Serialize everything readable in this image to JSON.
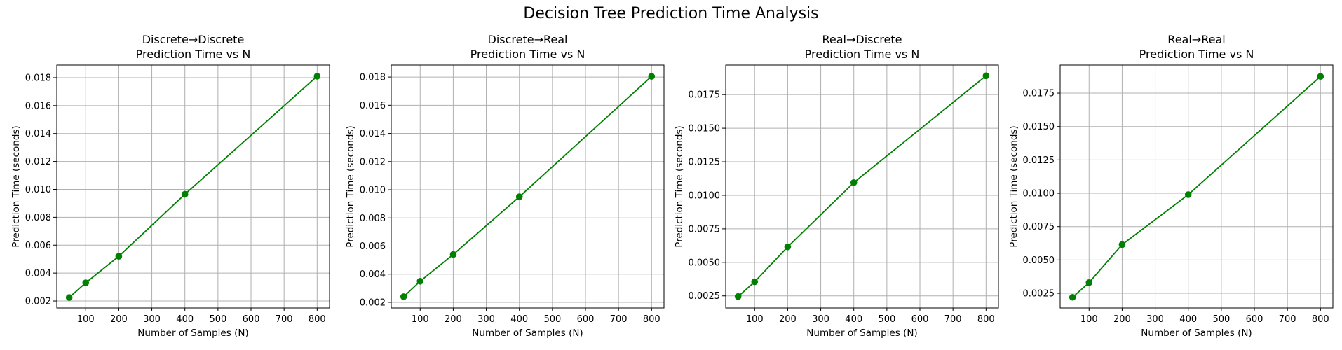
{
  "figure": {
    "title": "Decision Tree Prediction Time Analysis"
  },
  "style": {
    "series_color": "#008000",
    "grid_color": "#b0b0b0"
  },
  "chart_data": [
    {
      "type": "line",
      "title_line1": "Discrete→Discrete",
      "title_line2": "Prediction Time vs N",
      "xlabel": "Number of Samples (N)",
      "ylabel": "Prediction Time (seconds)",
      "x": [
        50,
        100,
        200,
        400,
        800
      ],
      "y": [
        0.00225,
        0.0033,
        0.0052,
        0.00965,
        0.0181
      ],
      "xlim": [
        12.5,
        837.5
      ],
      "ylim": [
        0.0015,
        0.0189
      ],
      "xticks": [
        100,
        200,
        300,
        400,
        500,
        600,
        700,
        800
      ],
      "yticks": [
        0.002,
        0.004,
        0.006,
        0.008,
        0.01,
        0.012,
        0.014,
        0.016,
        0.018
      ],
      "ytick_labels": [
        "0.002",
        "0.004",
        "0.006",
        "0.008",
        "0.010",
        "0.012",
        "0.014",
        "0.016",
        "0.018"
      ],
      "grid": true
    },
    {
      "type": "line",
      "title_line1": "Discrete→Real",
      "title_line2": "Prediction Time vs N",
      "xlabel": "Number of Samples (N)",
      "ylabel": "Prediction Time (seconds)",
      "x": [
        50,
        100,
        200,
        400,
        800
      ],
      "y": [
        0.0024,
        0.0035,
        0.0054,
        0.0095,
        0.01805
      ],
      "xlim": [
        12.5,
        837.5
      ],
      "ylim": [
        0.0016,
        0.01885
      ],
      "xticks": [
        100,
        200,
        300,
        400,
        500,
        600,
        700,
        800
      ],
      "yticks": [
        0.002,
        0.004,
        0.006,
        0.008,
        0.01,
        0.012,
        0.014,
        0.016,
        0.018
      ],
      "ytick_labels": [
        "0.002",
        "0.004",
        "0.006",
        "0.008",
        "0.010",
        "0.012",
        "0.014",
        "0.016",
        "0.018"
      ],
      "grid": true
    },
    {
      "type": "line",
      "title_line1": "Real→Discrete",
      "title_line2": "Prediction Time vs N",
      "xlabel": "Number of Samples (N)",
      "ylabel": "Prediction Time (seconds)",
      "x": [
        50,
        100,
        200,
        400,
        800
      ],
      "y": [
        0.00245,
        0.00355,
        0.00615,
        0.01095,
        0.0189
      ],
      "xlim": [
        12.5,
        837.5
      ],
      "ylim": [
        0.0016,
        0.0197
      ],
      "xticks": [
        100,
        200,
        300,
        400,
        500,
        600,
        700,
        800
      ],
      "yticks": [
        0.0025,
        0.005,
        0.0075,
        0.01,
        0.0125,
        0.015,
        0.0175
      ],
      "ytick_labels": [
        "0.0025",
        "0.0050",
        "0.0075",
        "0.0100",
        "0.0125",
        "0.0150",
        "0.0175"
      ],
      "grid": true
    },
    {
      "type": "line",
      "title_line1": "Real→Real",
      "title_line2": "Prediction Time vs N",
      "xlabel": "Number of Samples (N)",
      "ylabel": "Prediction Time (seconds)",
      "x": [
        50,
        100,
        200,
        400,
        800
      ],
      "y": [
        0.0022,
        0.0033,
        0.00615,
        0.0099,
        0.01875
      ],
      "xlim": [
        12.5,
        837.5
      ],
      "ylim": [
        0.0014,
        0.0196
      ],
      "xticks": [
        100,
        200,
        300,
        400,
        500,
        600,
        700,
        800
      ],
      "yticks": [
        0.0025,
        0.005,
        0.0075,
        0.01,
        0.0125,
        0.015,
        0.0175
      ],
      "ytick_labels": [
        "0.0025",
        "0.0050",
        "0.0075",
        "0.0100",
        "0.0125",
        "0.0150",
        "0.0175"
      ],
      "grid": true
    }
  ]
}
